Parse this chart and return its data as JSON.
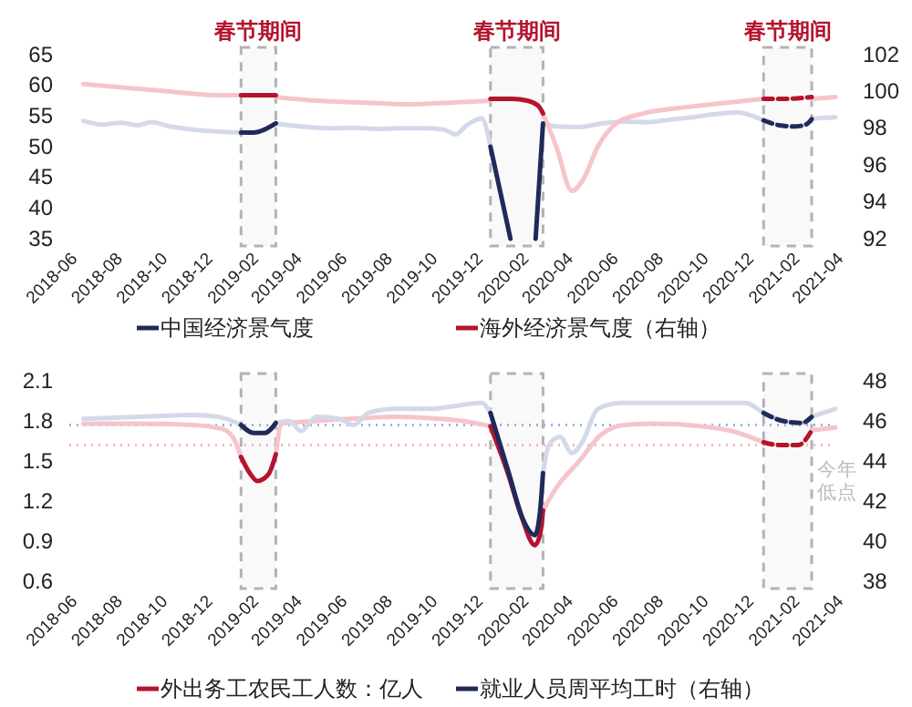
{
  "chart_data": [
    {
      "type": "line",
      "xlim": [
        "2018-06",
        "2021-04"
      ],
      "xticks": [
        "2018-06",
        "2018-08",
        "2018-10",
        "2018-12",
        "2019-02",
        "2019-04",
        "2019-06",
        "2019-08",
        "2019-10",
        "2019-12",
        "2020-02",
        "2020-04",
        "2020-06",
        "2020-08",
        "2020-10",
        "2020-12",
        "2021-02",
        "2021-04"
      ],
      "ylim": [
        35,
        65
      ],
      "yticks": [
        35,
        40,
        45,
        50,
        55,
        60,
        65
      ],
      "y2lim": [
        92,
        102
      ],
      "y2ticks": [
        92,
        94,
        96,
        98,
        100,
        102
      ],
      "legend": "bottom",
      "bands": [
        {
          "axis": "x",
          "from": "2019-01-19",
          "to": "2019-03-07",
          "label": "春节期间",
          "color": "#b3b3b3"
        },
        {
          "axis": "x",
          "from": "2019-12-22",
          "to": "2020-03-02",
          "label": "春节期间",
          "color": "#b3b3b3"
        },
        {
          "axis": "x",
          "from": "2020-12-25",
          "to": "2021-02-28",
          "label": "春节期间",
          "color": "#b3b3b3"
        }
      ],
      "series": [
        {
          "color": "#d4d9ea",
          "x": [
            "2018-06-20",
            "2018-07-15",
            "2018-08-10",
            "2018-09-01",
            "2018-09-20",
            "2018-10-15",
            "2018-11-15",
            "2018-12-15",
            "2019-01-19",
            null,
            "2019-03-07",
            "2019-03-25",
            "2019-04-20",
            "2019-05-20",
            "2019-06-20",
            "2019-07-20",
            "2019-08-20",
            "2019-09-20",
            "2019-10-20",
            "2019-11-05",
            "2019-11-20",
            "2019-12-10",
            "2019-12-22",
            null,
            "2020-03-02",
            "2020-03-20",
            "2020-04-20",
            "2020-05-20",
            "2020-06-20",
            "2020-07-20",
            "2020-08-20",
            "2020-09-20",
            "2020-10-20",
            "2020-11-20",
            "2020-12-10",
            "2020-12-25",
            null,
            "2021-02-28",
            "2021-03-15",
            "2021-04-01"
          ],
          "values": [
            54.2,
            53.6,
            53.9,
            53.5,
            54.0,
            53.3,
            52.8,
            52.5,
            52.3,
            null,
            53.8,
            53.5,
            53.2,
            53.0,
            53.1,
            52.9,
            53.0,
            53.0,
            52.8,
            52.0,
            53.5,
            54.6,
            50.0,
            null,
            53.8,
            53.3,
            53.2,
            53.8,
            54.1,
            54.0,
            54.4,
            54.8,
            55.3,
            55.6,
            55.0,
            54.3,
            null,
            54.5,
            54.7,
            54.8
          ]
        },
        {
          "color": "#f5c5cb",
          "axis": "y2",
          "x": [
            "2018-06-20",
            "2018-08-15",
            "2018-10-15",
            "2018-12-15",
            "2019-01-19",
            null,
            "2019-03-07",
            "2019-05-01",
            "2019-07-01",
            "2019-09-01",
            "2019-11-01",
            "2019-12-22",
            null,
            "2020-03-02",
            "2020-03-20",
            "2020-04-10",
            "2020-04-25",
            "2020-05-15",
            "2020-06-10",
            "2020-07-15",
            "2020-09-01",
            "2020-10-15",
            "2020-12-01",
            "2020-12-25",
            null,
            "2021-02-28",
            "2021-04-01"
          ],
          "values": [
            100.4,
            100.2,
            100.0,
            99.8,
            99.8,
            null,
            99.7,
            99.5,
            99.4,
            99.3,
            99.4,
            99.5,
            null,
            98.8,
            97.0,
            94.6,
            95.2,
            97.0,
            98.3,
            98.8,
            99.1,
            99.3,
            99.5,
            99.6,
            null,
            99.6,
            99.7
          ]
        },
        {
          "name": "中国经济景气度",
          "color": "#1f2a5a",
          "x": [
            "2019-01-19",
            "2019-02-05",
            "2019-02-20",
            "2019-03-07",
            "2019-08-01",
            "2019-12-22",
            "2020-01-18",
            "2020-02-05",
            "2020-02-21",
            "2020-03-02"
          ],
          "values": [
            52.3,
            52.3,
            52.8,
            53.8,
            null,
            50.0,
            35.0,
            null,
            35.0,
            53.8
          ]
        },
        {
          "name": "海外经济景气度（右轴）",
          "color": "#b4142d",
          "axis": "y2",
          "x": [
            "2019-01-19",
            "2019-03-07",
            "2019-08-01",
            "2019-12-22",
            "2020-01-20",
            "2020-02-10",
            "2020-02-25",
            "2020-03-02"
          ],
          "values": [
            99.8,
            99.8,
            null,
            99.6,
            99.6,
            99.5,
            99.2,
            98.8
          ]
        },
        {
          "color": "#1f2a5a",
          "line_style": "dashed",
          "x": [
            "2020-12-25",
            "2021-01-15",
            "2021-02-05",
            "2021-02-20",
            "2021-02-28"
          ],
          "values": [
            54.3,
            53.5,
            53.3,
            53.6,
            54.5
          ]
        },
        {
          "color": "#b4142d",
          "line_style": "dashed",
          "axis": "y2",
          "x": [
            "2020-12-25",
            "2021-01-25",
            "2021-02-28"
          ],
          "values": [
            99.6,
            99.6,
            99.7
          ]
        }
      ]
    },
    {
      "type": "line",
      "xlim": [
        "2018-06",
        "2021-04"
      ],
      "xticks": [
        "2018-06",
        "2018-08",
        "2018-10",
        "2018-12",
        "2019-02",
        "2019-04",
        "2019-06",
        "2019-08",
        "2019-10",
        "2019-12",
        "2020-02",
        "2020-04",
        "2020-06",
        "2020-08",
        "2020-10",
        "2020-12",
        "2021-02",
        "2021-04"
      ],
      "ylim": [
        0.6,
        2.1
      ],
      "yticks": [
        0.6,
        0.9,
        1.2,
        1.5,
        1.8,
        2.1
      ],
      "y2lim": [
        38,
        48
      ],
      "y2ticks": [
        38,
        40,
        42,
        44,
        46,
        48
      ],
      "legend": "bottom",
      "annotations": [
        "今年低点"
      ],
      "ref_lines": [
        {
          "axis": "y",
          "value": 1.62,
          "color": "#f4b6bd",
          "line_style": "dotted"
        },
        {
          "axis": "y2",
          "value": 45.8,
          "color": "#9db3dd",
          "line_style": "dotted"
        }
      ],
      "bands": [
        {
          "axis": "x",
          "from": "2019-01-19",
          "to": "2019-03-07",
          "color": "#b3b3b3"
        },
        {
          "axis": "x",
          "from": "2019-12-22",
          "to": "2020-03-02",
          "color": "#b3b3b3"
        },
        {
          "axis": "x",
          "from": "2020-12-25",
          "to": "2021-02-28",
          "color": "#b3b3b3"
        }
      ],
      "series": [
        {
          "color": "#f5c5cb",
          "x": [
            "2018-06-20",
            "2018-09-01",
            "2018-11-15",
            "2018-12-25",
            "2019-01-10",
            "2019-01-19",
            null,
            "2019-03-07",
            "2019-03-15",
            "2019-05-01",
            "2019-07-01",
            "2019-08-15",
            "2019-10-01",
            "2019-11-15",
            "2019-12-22",
            null,
            "2020-03-02",
            "2020-03-20",
            "2020-04-20",
            "2020-05-20",
            "2020-06-20",
            "2020-08-01",
            "2020-10-01",
            "2020-11-15",
            "2020-12-25",
            null,
            "2021-02-28",
            "2021-04-01"
          ],
          "values": [
            1.78,
            1.78,
            1.77,
            1.74,
            1.66,
            1.53,
            null,
            1.55,
            1.78,
            1.8,
            1.82,
            1.83,
            1.82,
            1.8,
            1.76,
            null,
            1.13,
            1.3,
            1.5,
            1.7,
            1.77,
            1.78,
            1.76,
            1.72,
            1.64,
            null,
            1.73,
            1.75
          ]
        },
        {
          "color": "#d4d9ea",
          "axis": "y2",
          "x": [
            "2018-06-20",
            "2018-09-01",
            "2018-11-15",
            "2018-12-20",
            "2019-01-19",
            null,
            "2019-03-07",
            "2019-03-25",
            "2019-04-10",
            "2019-05-01",
            "2019-06-01",
            "2019-06-20",
            "2019-07-10",
            "2019-08-15",
            "2019-10-01",
            "2019-11-15",
            "2019-12-10",
            "2019-12-22",
            null,
            "2020-03-02",
            "2020-03-10",
            "2020-03-25",
            "2020-04-10",
            "2020-04-25",
            "2020-05-15",
            "2020-06-15",
            "2020-09-01",
            "2020-11-01",
            "2020-12-01",
            "2020-12-25",
            "2021-01-20",
            "2021-02-15",
            "2021-02-28",
            "2021-03-15",
            "2021-04-01"
          ],
          "values": [
            46.1,
            46.2,
            46.3,
            46.2,
            45.8,
            null,
            45.9,
            46.0,
            45.5,
            46.2,
            46.1,
            45.8,
            46.4,
            46.6,
            46.6,
            46.8,
            46.9,
            46.4,
            null,
            43.4,
            44.8,
            45.2,
            44.4,
            45.0,
            46.6,
            46.9,
            46.9,
            46.9,
            46.9,
            46.4,
            46.0,
            45.9,
            46.2,
            46.4,
            46.6
          ]
        },
        {
          "name": "外出务工农民工人数：亿人",
          "color": "#b4142d",
          "x": [
            "2019-01-19",
            "2019-02-01",
            "2019-02-10",
            "2019-02-25",
            "2019-03-07",
            "2019-08-01",
            "2019-12-22",
            "2020-01-15",
            "2020-02-01",
            "2020-02-20",
            "2020-02-27",
            "2020-03-02"
          ],
          "values": [
            1.53,
            1.4,
            1.35,
            1.4,
            1.55,
            null,
            1.76,
            1.4,
            1.1,
            0.87,
            0.95,
            1.13
          ]
        },
        {
          "name": "就业人员周平均工时（右轴）",
          "color": "#1f2a5a",
          "axis": "y2",
          "x": [
            "2019-01-19",
            "2019-02-05",
            "2019-02-20",
            "2019-03-07",
            "2019-08-01",
            "2019-12-22",
            "2020-01-15",
            "2020-02-05",
            "2020-02-20",
            "2020-02-27",
            "2020-03-02"
          ],
          "values": [
            45.8,
            45.4,
            45.4,
            45.9,
            null,
            46.4,
            43.5,
            41.0,
            40.3,
            41.5,
            43.4
          ]
        },
        {
          "color": "#b4142d",
          "line_style": "dashed",
          "x": [
            "2020-12-25",
            "2021-01-15",
            "2021-02-10",
            "2021-02-28"
          ],
          "values": [
            1.64,
            1.62,
            1.62,
            1.73
          ]
        },
        {
          "color": "#1f2a5a",
          "line_style": "dashed",
          "axis": "y2",
          "x": [
            "2020-12-25",
            "2021-01-20",
            "2021-02-15",
            "2021-02-28"
          ],
          "values": [
            46.4,
            46.0,
            45.9,
            46.2
          ]
        }
      ]
    }
  ]
}
